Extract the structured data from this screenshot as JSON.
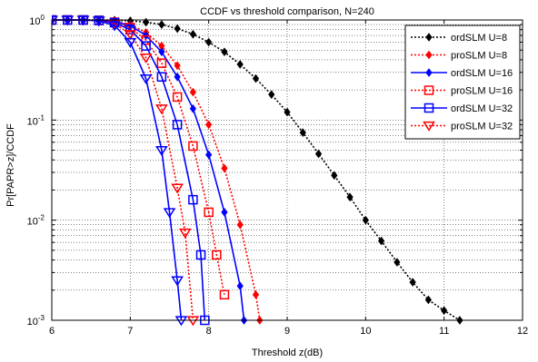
{
  "chart_data": {
    "type": "line",
    "title": "CCDF vs threshold comparison, N=240",
    "xlabel": "Threshold z(dB)",
    "ylabel": "Pr[PAPR>z]/CCDF",
    "xlim": [
      6,
      12
    ],
    "ylim": [
      0.001,
      1
    ],
    "yscale": "log",
    "grid": true,
    "legend_position": "top-right",
    "x_ticks": [
      "6",
      "7",
      "8",
      "9",
      "10",
      "11",
      "12"
    ],
    "y_ticks": [
      {
        "base": "10",
        "exp": "0",
        "value": 1
      },
      {
        "base": "10",
        "exp": "-1",
        "value": 0.1
      },
      {
        "base": "10",
        "exp": "-2",
        "value": 0.01
      },
      {
        "base": "10",
        "exp": "-3",
        "value": 0.001
      }
    ],
    "series": [
      {
        "name": "ordSLM U=8",
        "color": "#000000",
        "dash": "dot",
        "marker": "diamond",
        "x": [
          6.0,
          6.2,
          6.4,
          6.6,
          6.8,
          7.0,
          7.2,
          7.4,
          7.6,
          7.8,
          8.0,
          8.2,
          8.4,
          8.6,
          8.8,
          9.0,
          9.2,
          9.4,
          9.6,
          9.8,
          10.0,
          10.2,
          10.4,
          10.6,
          10.8,
          11.0,
          11.2
        ],
        "y": [
          1.0,
          1.0,
          1.0,
          1.0,
          0.995,
          0.98,
          0.95,
          0.9,
          0.82,
          0.72,
          0.6,
          0.48,
          0.36,
          0.26,
          0.18,
          0.12,
          0.075,
          0.046,
          0.028,
          0.017,
          0.01,
          0.0062,
          0.0038,
          0.0024,
          0.0016,
          0.00125,
          0.001
        ]
      },
      {
        "name": "proSLM U=8",
        "color": "#ff0000",
        "dash": "dot",
        "marker": "diamond",
        "x": [
          6.0,
          6.2,
          6.4,
          6.6,
          6.8,
          7.0,
          7.2,
          7.4,
          7.6,
          7.8,
          8.0,
          8.2,
          8.4,
          8.6,
          8.65
        ],
        "y": [
          1.0,
          1.0,
          1.0,
          0.99,
          0.97,
          0.9,
          0.75,
          0.55,
          0.35,
          0.19,
          0.09,
          0.033,
          0.009,
          0.0018,
          0.001
        ]
      },
      {
        "name": "ordSLM U=16",
        "color": "#0000ff",
        "dash": "solid",
        "marker": "diamond",
        "x": [
          6.0,
          6.2,
          6.4,
          6.6,
          6.8,
          7.0,
          7.2,
          7.4,
          7.6,
          7.8,
          8.0,
          8.2,
          8.4,
          8.45
        ],
        "y": [
          1.0,
          1.0,
          1.0,
          0.99,
          0.96,
          0.88,
          0.7,
          0.48,
          0.27,
          0.13,
          0.045,
          0.012,
          0.0022,
          0.001
        ]
      },
      {
        "name": "proSLM U=16",
        "color": "#ff0000",
        "dash": "dot",
        "marker": "square",
        "x": [
          6.0,
          6.2,
          6.4,
          6.6,
          6.8,
          7.0,
          7.2,
          7.4,
          7.6,
          7.8,
          8.0,
          8.1,
          8.2
        ],
        "y": [
          1.0,
          1.0,
          1.0,
          0.99,
          0.95,
          0.84,
          0.63,
          0.37,
          0.17,
          0.055,
          0.012,
          0.0045,
          0.0018
        ]
      },
      {
        "name": "ordSLM U=32",
        "color": "#0000ff",
        "dash": "solid",
        "marker": "square",
        "x": [
          6.0,
          6.2,
          6.4,
          6.6,
          6.8,
          7.0,
          7.2,
          7.4,
          7.6,
          7.8,
          7.9,
          7.95
        ],
        "y": [
          1.0,
          1.0,
          1.0,
          0.99,
          0.94,
          0.8,
          0.55,
          0.27,
          0.09,
          0.016,
          0.0045,
          0.001
        ]
      },
      {
        "name": "proSLM U=32",
        "color": "#ff0000",
        "dash": "dot",
        "marker": "triangle-down",
        "x": [
          6.0,
          6.2,
          6.4,
          6.6,
          6.8,
          7.0,
          7.2,
          7.4,
          7.6,
          7.7,
          7.8
        ],
        "y": [
          1.0,
          1.0,
          1.0,
          0.98,
          0.92,
          0.72,
          0.42,
          0.13,
          0.021,
          0.0075,
          0.001
        ]
      },
      {
        "name": "",
        "color": "#0000ff",
        "dash": "solid",
        "marker": "triangle-down",
        "x": [
          6.0,
          6.2,
          6.4,
          6.6,
          6.8,
          7.0,
          7.2,
          7.4,
          7.5,
          7.6,
          7.65
        ],
        "y": [
          1.0,
          1.0,
          1.0,
          0.98,
          0.88,
          0.6,
          0.26,
          0.05,
          0.012,
          0.0025,
          0.001
        ]
      }
    ]
  }
}
